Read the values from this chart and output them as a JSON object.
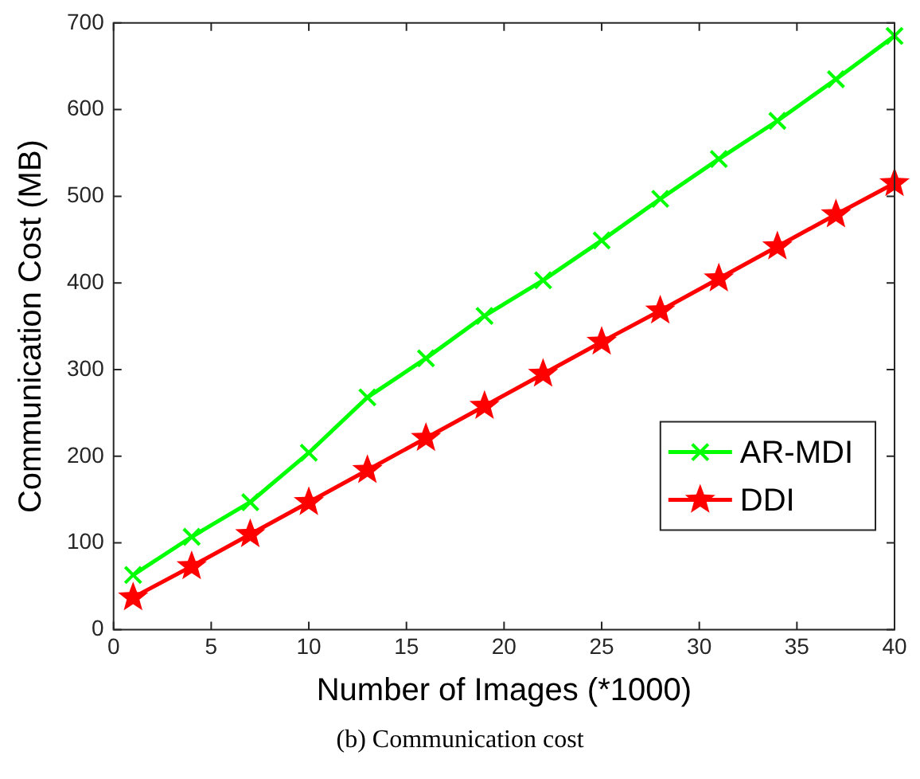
{
  "chart_data": {
    "type": "line",
    "xlabel": "Number of Images (*1000)",
    "ylabel": "Communication Cost (MB)",
    "annotations": [
      "(b) Communication cost"
    ],
    "x": [
      1,
      4,
      7,
      10,
      13,
      16,
      19,
      22,
      25,
      28,
      31,
      34,
      37,
      40
    ],
    "series": [
      {
        "name": "AR-MDI",
        "color": "#00ff00",
        "marker": "cross",
        "values": [
          63,
          107,
          147,
          204,
          268,
          313,
          362,
          403,
          449,
          497,
          543,
          587,
          635,
          685
        ]
      },
      {
        "name": "DDI",
        "color": "#ff0000",
        "marker": "star",
        "values": [
          37,
          73,
          110,
          147,
          184,
          221,
          258,
          295,
          332,
          368,
          405,
          442,
          479,
          515
        ]
      }
    ],
    "xlim": [
      0,
      40
    ],
    "xticks": [
      0,
      5,
      10,
      15,
      20,
      25,
      30,
      35,
      40
    ],
    "ylim": [
      0,
      700
    ],
    "yticks": [
      0,
      100,
      200,
      300,
      400,
      500,
      600,
      700
    ],
    "grid": false,
    "legend": "right",
    "line_style": "solid"
  }
}
